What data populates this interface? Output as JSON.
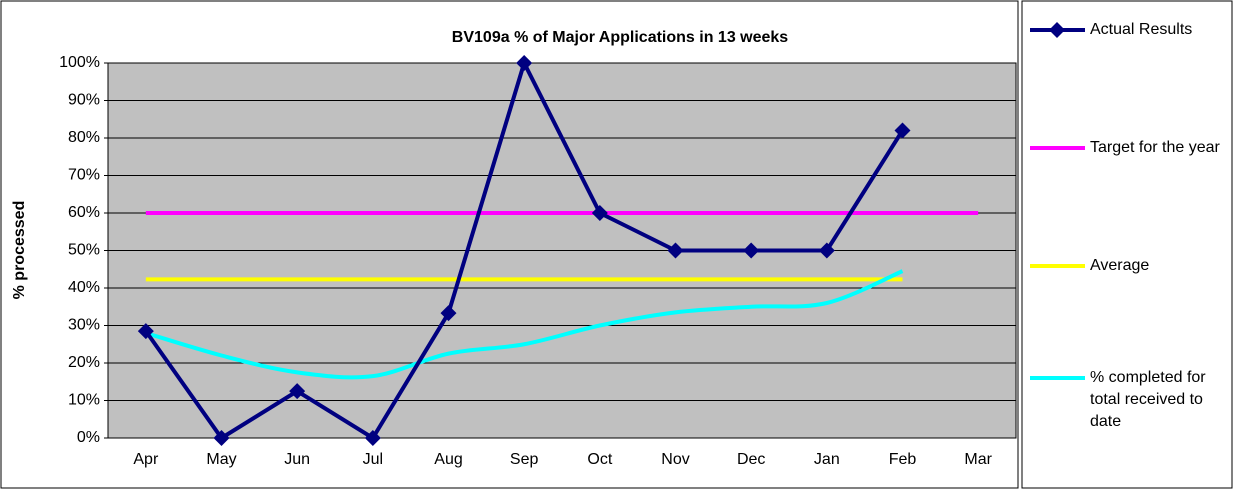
{
  "chart_data": {
    "type": "line",
    "title": "BV109a % of Major Applications in 13 weeks",
    "y_label": "% processed",
    "categories": [
      "Apr",
      "May",
      "Jun",
      "Jul",
      "Aug",
      "Sep",
      "Oct",
      "Nov",
      "Dec",
      "Jan",
      "Feb",
      "Mar"
    ],
    "series": [
      {
        "name": "Actual Results",
        "color": "#000080",
        "marker": "diamond",
        "values": [
          28.5,
          0,
          12.5,
          0,
          33.3,
          100,
          60,
          50,
          50,
          50,
          82,
          null
        ]
      },
      {
        "name": "Target for the year",
        "color": "#ff00ff",
        "values": [
          60,
          60,
          60,
          60,
          60,
          60,
          60,
          60,
          60,
          60,
          60,
          60
        ]
      },
      {
        "name": "Average",
        "color": "#ffff00",
        "values": [
          42.3,
          42.3,
          42.3,
          42.3,
          42.3,
          42.3,
          42.3,
          42.3,
          42.3,
          42.3,
          42.3,
          null
        ]
      },
      {
        "name": "% completed for total received to date",
        "color": "#00ffff",
        "smooth": true,
        "values": [
          28,
          22,
          17.5,
          16.5,
          22.5,
          25,
          30,
          33.5,
          35,
          36,
          44.5,
          null
        ]
      }
    ],
    "ylim": [
      0,
      100
    ],
    "yticks": [
      {
        "value": 0,
        "label": "0%"
      },
      {
        "value": 10,
        "label": "10%"
      },
      {
        "value": 20,
        "label": "20%"
      },
      {
        "value": 30,
        "label": "30%"
      },
      {
        "value": 40,
        "label": "40%"
      },
      {
        "value": 50,
        "label": "50%"
      },
      {
        "value": 60,
        "label": "60%"
      },
      {
        "value": 70,
        "label": "70%"
      },
      {
        "value": 80,
        "label": "80%"
      },
      {
        "value": 90,
        "label": "90%"
      },
      {
        "value": 100,
        "label": "100%"
      }
    ],
    "grid": true,
    "legend": "right"
  }
}
